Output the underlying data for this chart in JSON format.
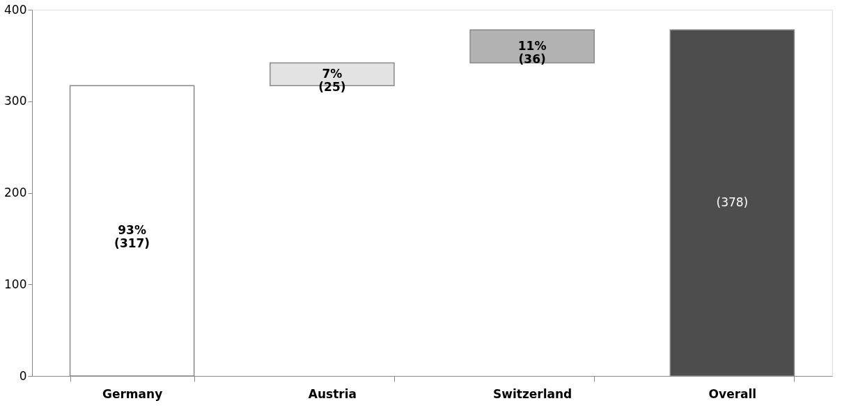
{
  "chart_data": {
    "type": "bar",
    "categories": [
      "Germany",
      "Austria",
      "Switzerland",
      "Overall"
    ],
    "values": [
      317,
      25,
      36,
      378
    ],
    "base": [
      0,
      317,
      342,
      0
    ],
    "colors": [
      "#ffffff",
      "#e3e3e3",
      "#b2b2b2",
      "#4d4d4d"
    ],
    "value_labels": [
      "93%\n(317)",
      "7%\n(25)",
      "11%\n(36)",
      "(378)"
    ],
    "ylim": [
      0,
      400
    ],
    "yticks": [
      0,
      100,
      200,
      300,
      400
    ],
    "grid": false
  }
}
